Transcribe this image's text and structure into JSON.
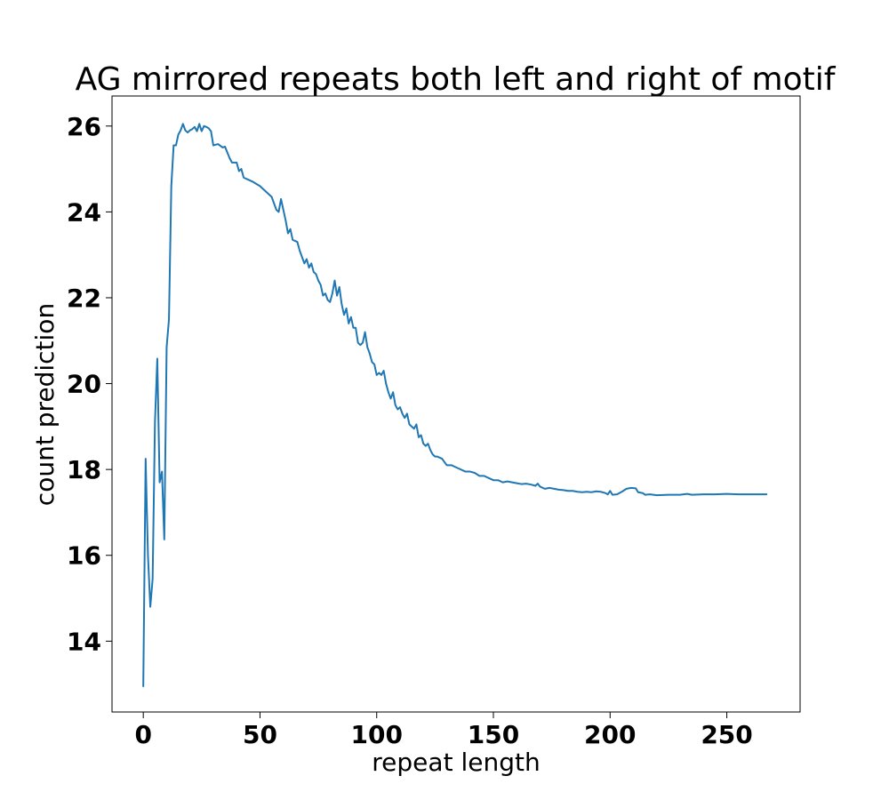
{
  "colors": {
    "line": "#1f77b4",
    "axes": "#000000",
    "background": "#ffffff"
  },
  "chart_data": {
    "type": "line",
    "title": "AG mirrored repeats both left and right of motif",
    "xlabel": "repeat length",
    "ylabel": "count prediction",
    "xlim": [
      -13.4,
      281.4
    ],
    "ylim": [
      12.35,
      26.7
    ],
    "xticks": [
      0,
      50,
      100,
      150,
      200,
      250
    ],
    "xtick_labels": [
      "0",
      "50",
      "100",
      "150",
      "200",
      "250"
    ],
    "yticks": [
      14,
      16,
      18,
      20,
      22,
      24,
      26
    ],
    "ytick_labels": [
      "14",
      "16",
      "18",
      "20",
      "22",
      "24",
      "26"
    ],
    "grid": false,
    "legend": null,
    "series": [
      {
        "color": "#1f77b4",
        "points": [
          [
            0,
            12.95
          ],
          [
            1,
            18.25
          ],
          [
            2,
            16.0
          ],
          [
            3,
            14.8
          ],
          [
            4,
            15.45
          ],
          [
            5,
            19.1
          ],
          [
            6,
            20.58
          ],
          [
            7,
            17.7
          ],
          [
            8,
            17.95
          ],
          [
            9,
            16.37
          ],
          [
            10,
            20.85
          ],
          [
            11,
            21.5
          ],
          [
            12,
            24.6
          ],
          [
            13,
            25.55
          ],
          [
            14,
            25.55
          ],
          [
            15,
            25.8
          ],
          [
            16,
            25.9
          ],
          [
            17,
            26.05
          ],
          [
            18,
            25.9
          ],
          [
            19,
            25.85
          ],
          [
            20,
            25.9
          ],
          [
            21,
            25.93
          ],
          [
            22,
            25.98
          ],
          [
            23,
            25.88
          ],
          [
            24,
            26.05
          ],
          [
            25,
            25.88
          ],
          [
            26,
            26.0
          ],
          [
            27,
            25.98
          ],
          [
            28,
            25.95
          ],
          [
            29,
            25.88
          ],
          [
            30,
            25.55
          ],
          [
            32,
            25.58
          ],
          [
            34,
            25.5
          ],
          [
            35,
            25.52
          ],
          [
            37,
            25.25
          ],
          [
            38,
            25.15
          ],
          [
            40,
            25.15
          ],
          [
            41,
            24.95
          ],
          [
            42,
            25.0
          ],
          [
            43,
            24.8
          ],
          [
            45,
            24.75
          ],
          [
            47,
            24.7
          ],
          [
            50,
            24.6
          ],
          [
            52,
            24.5
          ],
          [
            55,
            24.35
          ],
          [
            57,
            24.05
          ],
          [
            58,
            24.0
          ],
          [
            59,
            24.3
          ],
          [
            60,
            24.05
          ],
          [
            61,
            23.8
          ],
          [
            62,
            23.5
          ],
          [
            63,
            23.6
          ],
          [
            64,
            23.35
          ],
          [
            66,
            23.3
          ],
          [
            67,
            23.1
          ],
          [
            68,
            22.95
          ],
          [
            69,
            22.8
          ],
          [
            70,
            22.9
          ],
          [
            71,
            22.7
          ],
          [
            72,
            22.8
          ],
          [
            73,
            22.6
          ],
          [
            74,
            22.55
          ],
          [
            75,
            22.4
          ],
          [
            76,
            22.3
          ],
          [
            77,
            22.05
          ],
          [
            78,
            22.1
          ],
          [
            79,
            21.95
          ],
          [
            80,
            21.9
          ],
          [
            81,
            22.1
          ],
          [
            82,
            22.4
          ],
          [
            83,
            22.05
          ],
          [
            84,
            22.25
          ],
          [
            85,
            21.85
          ],
          [
            86,
            21.6
          ],
          [
            87,
            21.75
          ],
          [
            88,
            21.4
          ],
          [
            89,
            21.55
          ],
          [
            90,
            21.3
          ],
          [
            91,
            21.3
          ],
          [
            92,
            20.95
          ],
          [
            93,
            20.9
          ],
          [
            94,
            20.95
          ],
          [
            95,
            21.2
          ],
          [
            96,
            20.85
          ],
          [
            97,
            20.7
          ],
          [
            98,
            20.5
          ],
          [
            99,
            20.45
          ],
          [
            100,
            20.2
          ],
          [
            101,
            20.25
          ],
          [
            102,
            20.2
          ],
          [
            103,
            20.3
          ],
          [
            104,
            20.0
          ],
          [
            105,
            19.8
          ],
          [
            106,
            19.65
          ],
          [
            107,
            19.8
          ],
          [
            108,
            19.5
          ],
          [
            109,
            19.4
          ],
          [
            110,
            19.45
          ],
          [
            111,
            19.3
          ],
          [
            112,
            19.2
          ],
          [
            113,
            19.3
          ],
          [
            114,
            19.05
          ],
          [
            115,
            19.0
          ],
          [
            116,
            18.95
          ],
          [
            117,
            19.05
          ],
          [
            118,
            18.75
          ],
          [
            119,
            18.8
          ],
          [
            120,
            18.6
          ],
          [
            121,
            18.55
          ],
          [
            122,
            18.6
          ],
          [
            123,
            18.45
          ],
          [
            124,
            18.35
          ],
          [
            125,
            18.3
          ],
          [
            126,
            18.3
          ],
          [
            128,
            18.25
          ],
          [
            130,
            18.1
          ],
          [
            132,
            18.1
          ],
          [
            134,
            18.05
          ],
          [
            136,
            18.0
          ],
          [
            138,
            17.95
          ],
          [
            140,
            17.95
          ],
          [
            142,
            17.92
          ],
          [
            144,
            17.85
          ],
          [
            146,
            17.85
          ],
          [
            148,
            17.8
          ],
          [
            150,
            17.75
          ],
          [
            152,
            17.75
          ],
          [
            154,
            17.7
          ],
          [
            156,
            17.72
          ],
          [
            158,
            17.7
          ],
          [
            160,
            17.68
          ],
          [
            162,
            17.66
          ],
          [
            164,
            17.67
          ],
          [
            166,
            17.65
          ],
          [
            168,
            17.62
          ],
          [
            169,
            17.67
          ],
          [
            170,
            17.6
          ],
          [
            172,
            17.55
          ],
          [
            174,
            17.57
          ],
          [
            176,
            17.55
          ],
          [
            178,
            17.53
          ],
          [
            180,
            17.52
          ],
          [
            182,
            17.5
          ],
          [
            184,
            17.5
          ],
          [
            186,
            17.48
          ],
          [
            188,
            17.47
          ],
          [
            190,
            17.48
          ],
          [
            192,
            17.47
          ],
          [
            194,
            17.49
          ],
          [
            196,
            17.48
          ],
          [
            198,
            17.45
          ],
          [
            199,
            17.42
          ],
          [
            200,
            17.5
          ],
          [
            201,
            17.41
          ],
          [
            203,
            17.42
          ],
          [
            205,
            17.48
          ],
          [
            207,
            17.55
          ],
          [
            209,
            17.57
          ],
          [
            211,
            17.56
          ],
          [
            212,
            17.47
          ],
          [
            214,
            17.45
          ],
          [
            215,
            17.41
          ],
          [
            217,
            17.42
          ],
          [
            220,
            17.4
          ],
          [
            225,
            17.41
          ],
          [
            230,
            17.41
          ],
          [
            233,
            17.43
          ],
          [
            235,
            17.41
          ],
          [
            240,
            17.42
          ],
          [
            245,
            17.42
          ],
          [
            250,
            17.43
          ],
          [
            255,
            17.42
          ],
          [
            260,
            17.42
          ],
          [
            267,
            17.42
          ]
        ]
      }
    ]
  }
}
